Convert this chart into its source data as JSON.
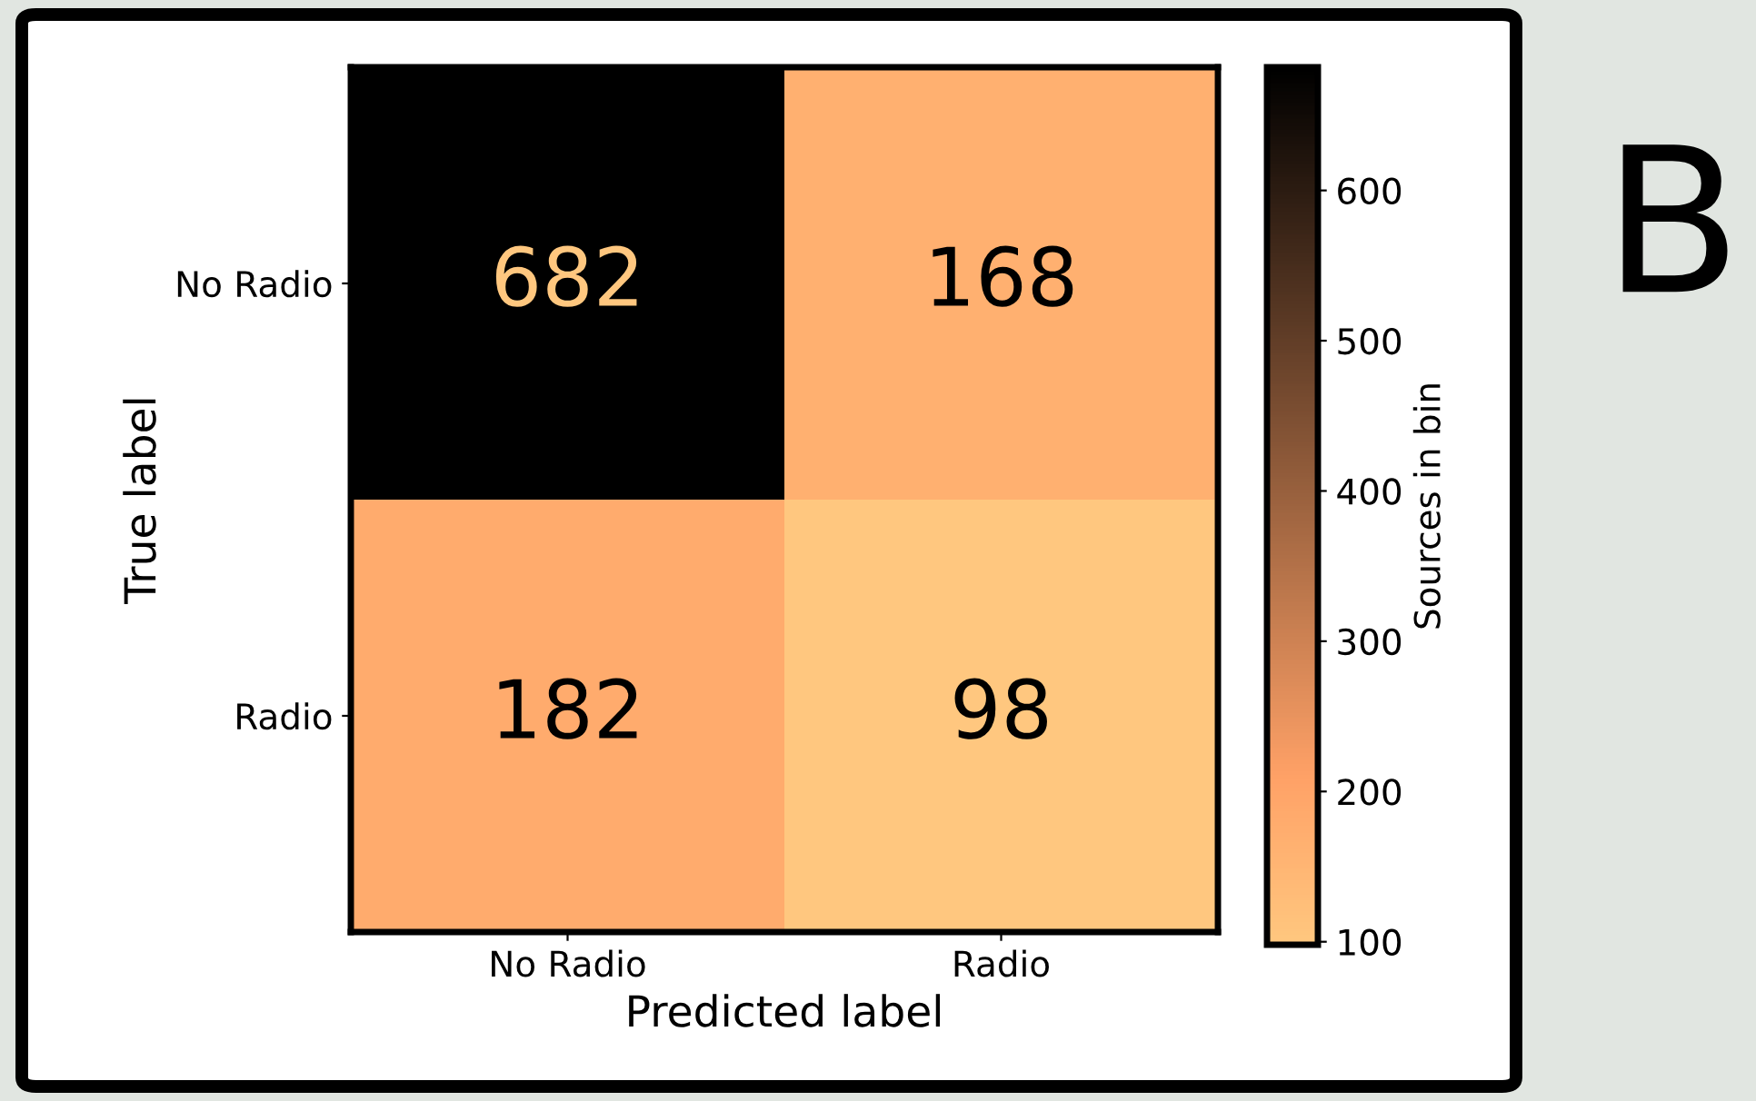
{
  "chart_data": {
    "type": "heatmap",
    "categories": [
      "No Radio",
      "Radio"
    ],
    "y_categories": [
      "No Radio",
      "Radio"
    ],
    "cells": [
      [
        682,
        168
      ],
      [
        182,
        98
      ]
    ],
    "data_labels": true,
    "clim": [
      98,
      682
    ],
    "cticks": [
      100,
      200,
      300,
      400,
      500,
      600
    ],
    "xlabel": "Predicted label",
    "ylabel": "True label",
    "clabel": "Sources in bin",
    "annotations": [
      "B"
    ]
  }
}
